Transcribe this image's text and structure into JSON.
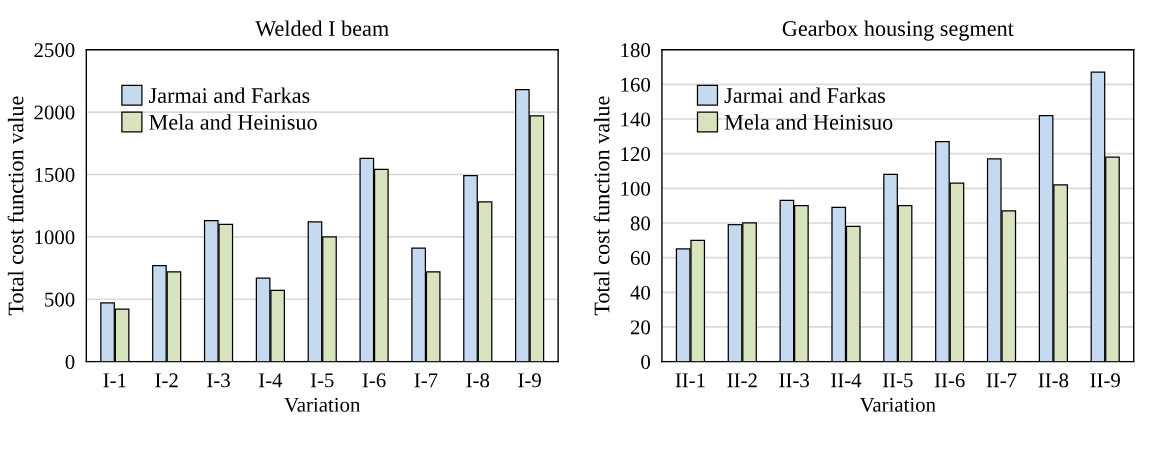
{
  "chart_data": [
    {
      "type": "bar",
      "title": "Welded I beam",
      "xlabel": "Variation",
      "ylabel": "Total cost function value",
      "categories": [
        "I-1",
        "I-2",
        "I-3",
        "I-4",
        "I-5",
        "I-6",
        "I-7",
        "I-8",
        "I-9"
      ],
      "series": [
        {
          "name": "Jarmai and Farkas",
          "color": "#c5d9f1",
          "values": [
            470,
            770,
            1130,
            670,
            1120,
            1630,
            910,
            1490,
            2180
          ]
        },
        {
          "name": "Mela and Heinisuo",
          "color": "#d7e4bd",
          "values": [
            420,
            720,
            1100,
            570,
            1000,
            1540,
            720,
            1280,
            1970
          ]
        }
      ],
      "ylim": [
        0,
        2500
      ],
      "yticks": [
        0,
        500,
        1000,
        1500,
        2000,
        2500
      ],
      "grid": "y",
      "legend": "top left"
    },
    {
      "type": "bar",
      "title": "Gearbox housing segment",
      "xlabel": "Variation",
      "ylabel": "Total cost function value",
      "categories": [
        "II-1",
        "II-2",
        "II-3",
        "II-4",
        "II-5",
        "II-6",
        "II-7",
        "II-8",
        "II-9"
      ],
      "series": [
        {
          "name": "Jarmai and Farkas",
          "color": "#c5d9f1",
          "values": [
            65,
            79,
            93,
            89,
            108,
            127,
            117,
            142,
            167
          ]
        },
        {
          "name": "Mela and Heinisuo",
          "color": "#d7e4bd",
          "values": [
            70,
            80,
            90,
            78,
            90,
            103,
            87,
            102,
            118
          ]
        }
      ],
      "ylim": [
        0,
        180
      ],
      "yticks": [
        0,
        20,
        40,
        60,
        80,
        100,
        120,
        140,
        160,
        180
      ],
      "grid": "y",
      "legend": "top left"
    }
  ]
}
